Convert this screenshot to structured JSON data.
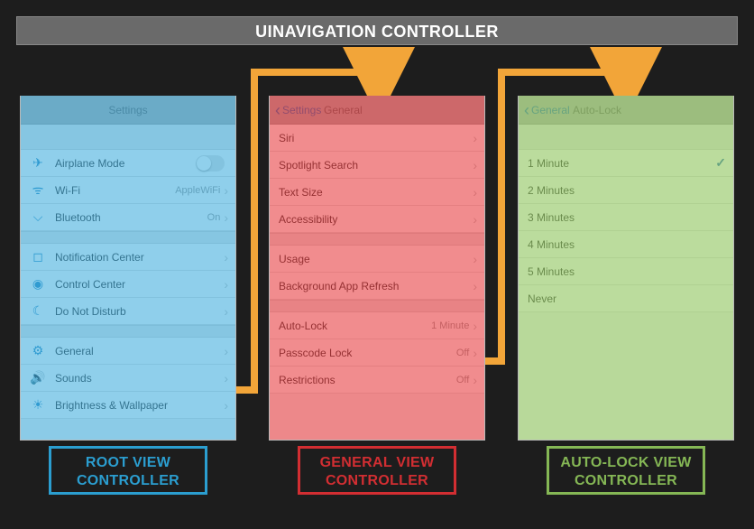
{
  "header": "UINAVIGATION CONTROLLER",
  "arrow_color": "#f2a539",
  "panels": {
    "root": {
      "title": "Settings",
      "overlay": "rgba(52,170,220,0.55)",
      "caption_line1": "ROOT VIEW",
      "caption_line2": "CONTROLLER",
      "caption_color": "#2b9ed0",
      "groups": [
        [
          {
            "icon": "✈",
            "label": "Airplane Mode",
            "toggle": true
          },
          {
            "icon": "ᯤ",
            "label": "Wi-Fi",
            "value": "AppleWiFi",
            "chev": true
          },
          {
            "icon": "⌵",
            "label": "Bluetooth",
            "value": "On",
            "chev": true,
            "icon_alt": "bluetooth"
          }
        ],
        [
          {
            "icon": "◻",
            "label": "Notification Center",
            "chev": true
          },
          {
            "icon": "◉",
            "label": "Control Center",
            "chev": true
          },
          {
            "icon": "☾",
            "label": "Do Not Disturb",
            "chev": true
          }
        ],
        [
          {
            "icon": "⚙",
            "label": "General",
            "chev": true
          },
          {
            "icon": "🔊",
            "label": "Sounds",
            "chev": true
          },
          {
            "icon": "☀",
            "label": "Brightness & Wallpaper",
            "chev": true
          }
        ]
      ]
    },
    "general": {
      "back": "Settings",
      "title": "General",
      "overlay": "rgba(231,47,51,0.55)",
      "caption_line1": "GENERAL VIEW",
      "caption_line2": "CONTROLLER",
      "caption_color": "#d22e32",
      "groups": [
        [
          {
            "label": "Siri",
            "chev": true
          },
          {
            "label": "Spotlight Search",
            "chev": true
          },
          {
            "label": "Text Size",
            "chev": true
          },
          {
            "label": "Accessibility",
            "chev": true
          }
        ],
        [
          {
            "label": "Usage",
            "chev": true
          },
          {
            "label": "Background App Refresh",
            "chev": true
          }
        ],
        [
          {
            "label": "Auto-Lock",
            "value": "1 Minute",
            "chev": true
          },
          {
            "label": "Passcode Lock",
            "value": "Off",
            "chev": true
          },
          {
            "label": "Restrictions",
            "value": "Off",
            "chev": true
          }
        ]
      ]
    },
    "autolock": {
      "back": "General",
      "title": "Auto-Lock",
      "overlay": "rgba(143,198,93,0.60)",
      "caption_line1": "AUTO-LOCK VIEW",
      "caption_line2": "CONTROLLER",
      "caption_color": "#85b755",
      "groups": [
        [
          {
            "label": "1 Minute",
            "check": true
          },
          {
            "label": "2 Minutes"
          },
          {
            "label": "3 Minutes"
          },
          {
            "label": "4 Minutes"
          },
          {
            "label": "5 Minutes"
          },
          {
            "label": "Never"
          }
        ]
      ]
    }
  }
}
